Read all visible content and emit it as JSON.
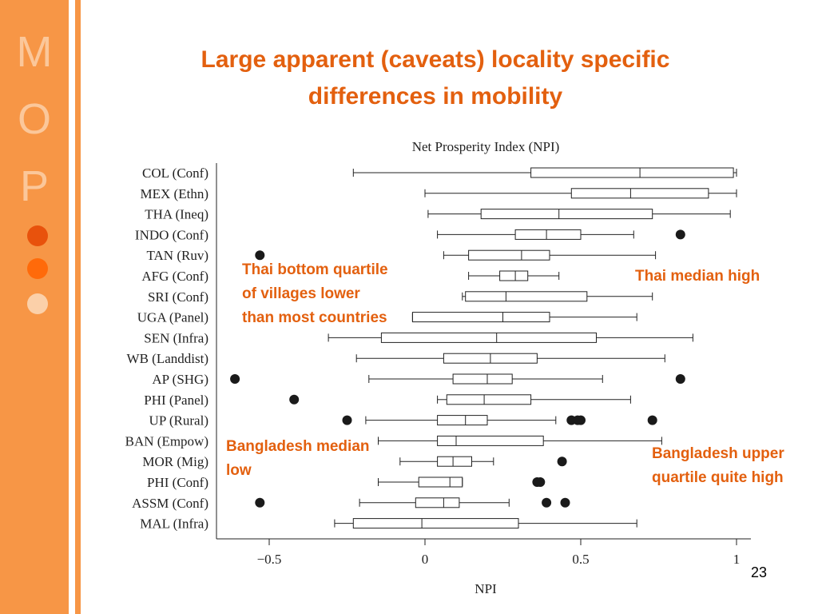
{
  "slide": {
    "title_line1": "Large apparent (caveats) locality specific",
    "title_line2": "differences in mobility",
    "page_number": "23",
    "accent_color": "#f79646",
    "title_color": "#e3600f"
  },
  "logo": {
    "letters": [
      "M",
      "O",
      "P"
    ]
  },
  "callouts": {
    "thai_bottom": [
      "Thai bottom quartile",
      "of villages lower",
      "than most countries"
    ],
    "thai_median": "Thai median high",
    "bangladesh_median": [
      "Bangladesh median",
      "low"
    ],
    "bangladesh_upper": [
      "Bangladesh upper",
      "quartile quite high"
    ]
  },
  "chart_data": {
    "type": "boxplot",
    "orientation": "horizontal",
    "title": "Net Prosperity Index (NPI)",
    "xlabel": "NPI",
    "xlim": [
      -0.68,
      1.05
    ],
    "xticks": [
      -0.5,
      0,
      0.5,
      1
    ],
    "xtick_labels": [
      "−0.5",
      "0",
      "0.5",
      "1"
    ],
    "series": [
      {
        "name": "COL (Conf)",
        "whisker_low": -0.23,
        "q1": 0.34,
        "median": 0.69,
        "q3": 0.99,
        "whisker_high": 1.0,
        "outliers": []
      },
      {
        "name": "MEX (Ethn)",
        "whisker_low": 0.0,
        "q1": 0.47,
        "median": 0.66,
        "q3": 0.91,
        "whisker_high": 1.0,
        "outliers": []
      },
      {
        "name": "THA (Ineq)",
        "whisker_low": 0.01,
        "q1": 0.18,
        "median": 0.43,
        "q3": 0.73,
        "whisker_high": 0.98,
        "outliers": []
      },
      {
        "name": "INDO (Conf)",
        "whisker_low": 0.04,
        "q1": 0.29,
        "median": 0.39,
        "q3": 0.5,
        "whisker_high": 0.67,
        "outliers": [
          0.82
        ]
      },
      {
        "name": "TAN (Ruv)",
        "whisker_low": 0.06,
        "q1": 0.14,
        "median": 0.31,
        "q3": 0.4,
        "whisker_high": 0.74,
        "outliers": [
          -0.53
        ]
      },
      {
        "name": "AFG (Conf)",
        "whisker_low": 0.14,
        "q1": 0.24,
        "median": 0.29,
        "q3": 0.33,
        "whisker_high": 0.43,
        "outliers": []
      },
      {
        "name": "SRI (Conf)",
        "whisker_low": 0.12,
        "q1": 0.13,
        "median": 0.26,
        "q3": 0.52,
        "whisker_high": 0.73,
        "outliers": []
      },
      {
        "name": "UGA (Panel)",
        "whisker_low": -0.04,
        "q1": -0.04,
        "median": 0.25,
        "q3": 0.4,
        "whisker_high": 0.68,
        "outliers": []
      },
      {
        "name": "SEN (Infra)",
        "whisker_low": -0.31,
        "q1": -0.14,
        "median": 0.23,
        "q3": 0.55,
        "whisker_high": 0.86,
        "outliers": []
      },
      {
        "name": "WB (Landdist)",
        "whisker_low": -0.22,
        "q1": 0.06,
        "median": 0.21,
        "q3": 0.36,
        "whisker_high": 0.77,
        "outliers": []
      },
      {
        "name": "AP (SHG)",
        "whisker_low": -0.18,
        "q1": 0.09,
        "median": 0.2,
        "q3": 0.28,
        "whisker_high": 0.57,
        "outliers": [
          -0.61,
          0.82
        ]
      },
      {
        "name": "PHI (Panel)",
        "whisker_low": 0.04,
        "q1": 0.07,
        "median": 0.19,
        "q3": 0.34,
        "whisker_high": 0.66,
        "outliers": [
          -0.42
        ]
      },
      {
        "name": "UP (Rural)",
        "whisker_low": -0.19,
        "q1": 0.04,
        "median": 0.13,
        "q3": 0.2,
        "whisker_high": 0.42,
        "outliers": [
          -0.25,
          0.47,
          0.49,
          0.5,
          0.73
        ]
      },
      {
        "name": "BAN (Empow)",
        "whisker_low": -0.15,
        "q1": 0.04,
        "median": 0.1,
        "q3": 0.38,
        "whisker_high": 0.76,
        "outliers": []
      },
      {
        "name": "MOR (Mig)",
        "whisker_low": -0.08,
        "q1": 0.04,
        "median": 0.09,
        "q3": 0.15,
        "whisker_high": 0.22,
        "outliers": [
          0.44
        ]
      },
      {
        "name": "PHI (Conf)",
        "whisker_low": -0.15,
        "q1": -0.02,
        "median": 0.08,
        "q3": 0.12,
        "whisker_high": 0.12,
        "outliers": [
          0.36,
          0.37
        ]
      },
      {
        "name": "ASSM (Conf)",
        "whisker_low": -0.21,
        "q1": -0.03,
        "median": 0.06,
        "q3": 0.11,
        "whisker_high": 0.27,
        "outliers": [
          -0.53,
          0.39,
          0.45
        ]
      },
      {
        "name": "MAL (Infra)",
        "whisker_low": -0.29,
        "q1": -0.23,
        "median": -0.01,
        "q3": 0.3,
        "whisker_high": 0.68,
        "outliers": []
      }
    ]
  }
}
